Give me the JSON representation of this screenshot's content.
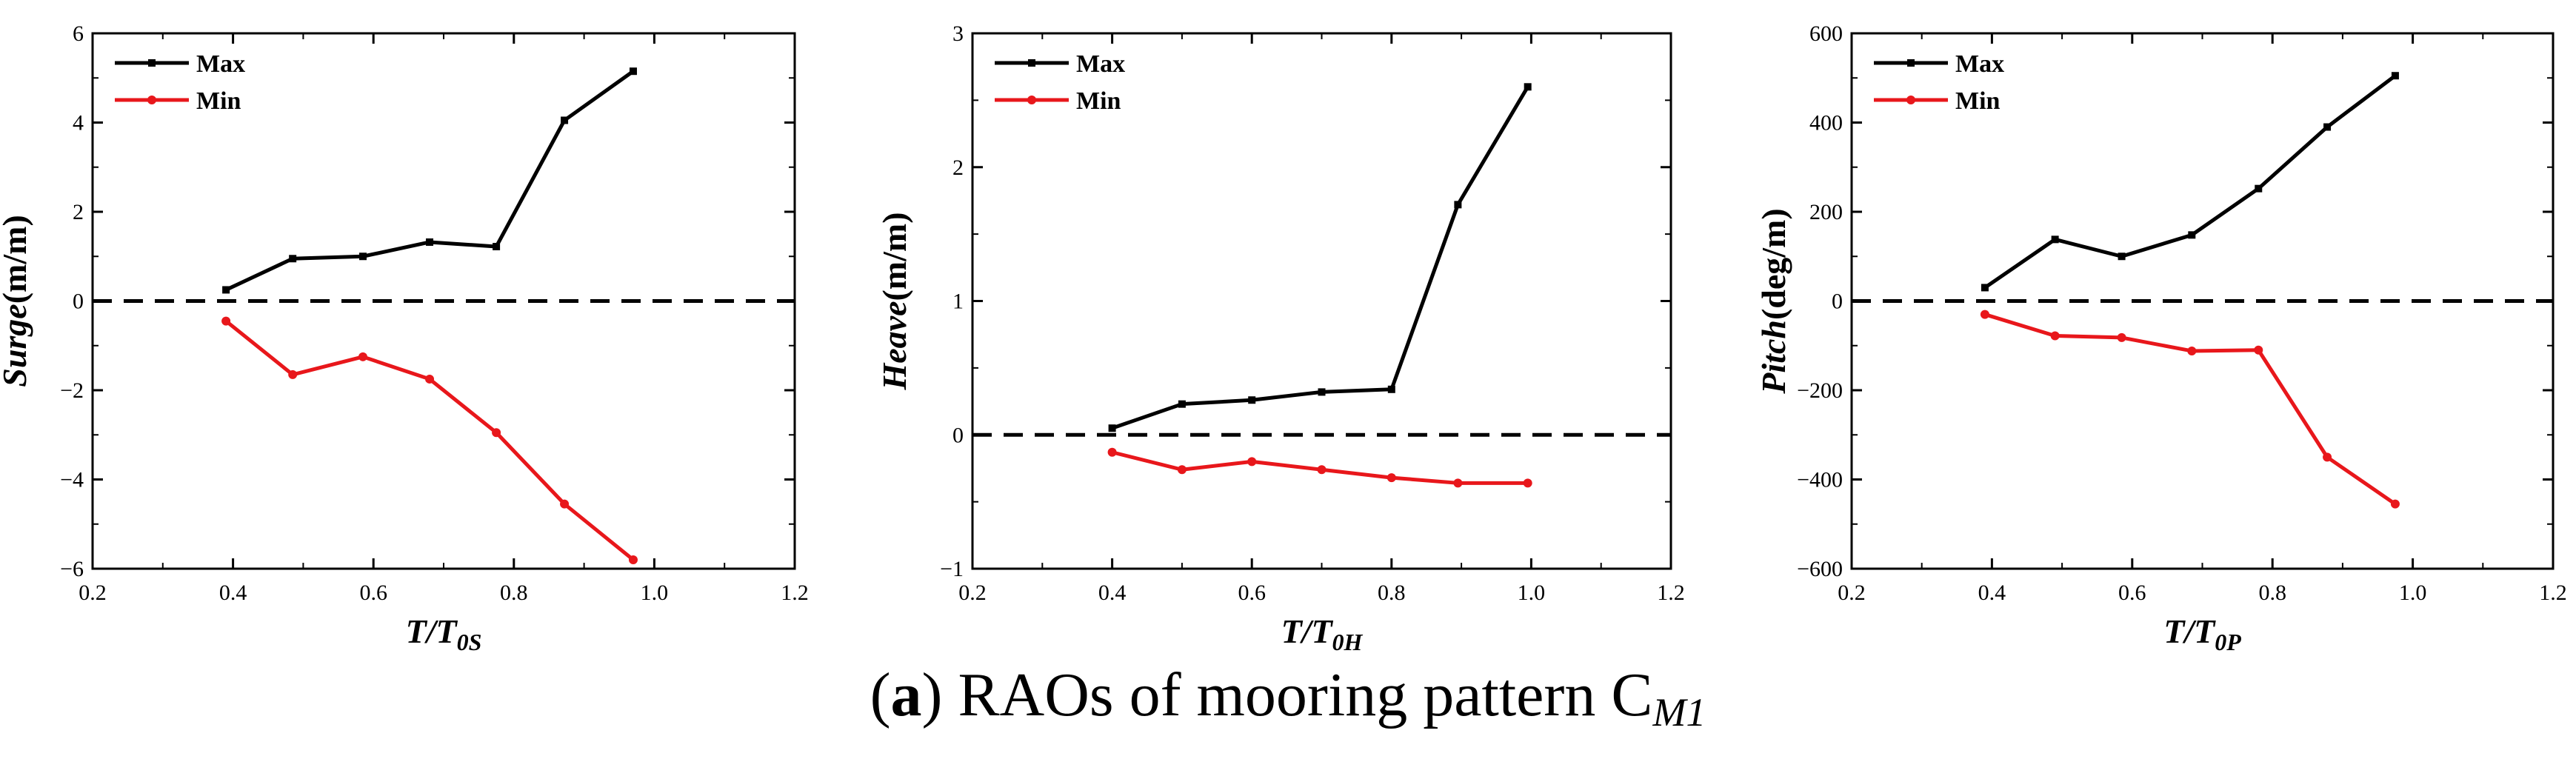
{
  "caption": {
    "letter": "a",
    "text": " RAOs of mooring pattern C",
    "sub": "M1"
  },
  "colors": {
    "max": "#000000",
    "min": "#e8171b",
    "zero_line": "#000000"
  },
  "chart_data": [
    {
      "type": "line",
      "title": "",
      "xlabel": {
        "main": "T/T",
        "sub": "0S"
      },
      "ylabel": {
        "name": "Surge",
        "unit": "(m/m)"
      },
      "xlim": [
        0.2,
        1.2
      ],
      "ylim": [
        -6,
        6
      ],
      "xticks": [
        0.2,
        0.4,
        0.6,
        0.8,
        1.0,
        1.2
      ],
      "xtick_labels": [
        "0.2",
        "0.4",
        "0.6",
        "0.8",
        "1.0",
        "1.2"
      ],
      "yticks": [
        -6,
        -4,
        -2,
        0,
        2,
        4,
        6
      ],
      "ytick_labels": [
        "−6",
        "−4",
        "−2",
        "0",
        "2",
        "4",
        "6"
      ],
      "legend_position": "top-left",
      "zero_line": true,
      "series": [
        {
          "name": "Max",
          "color": "#000000",
          "marker": "square",
          "x": [
            0.39,
            0.485,
            0.585,
            0.68,
            0.775,
            0.872,
            0.97
          ],
          "y": [
            0.25,
            0.95,
            1.0,
            1.32,
            1.22,
            4.05,
            5.15
          ]
        },
        {
          "name": "Min",
          "color": "#e8171b",
          "marker": "circle",
          "x": [
            0.39,
            0.485,
            0.585,
            0.68,
            0.775,
            0.872,
            0.97
          ],
          "y": [
            -0.45,
            -1.65,
            -1.25,
            -1.75,
            -2.95,
            -4.55,
            -5.8
          ]
        }
      ]
    },
    {
      "type": "line",
      "title": "",
      "xlabel": {
        "main": "T/T",
        "sub": "0H"
      },
      "ylabel": {
        "name": "Heave",
        "unit": "(m/m)"
      },
      "xlim": [
        0.2,
        1.2
      ],
      "ylim": [
        -1,
        3
      ],
      "xticks": [
        0.2,
        0.4,
        0.6,
        0.8,
        1.0,
        1.2
      ],
      "xtick_labels": [
        "0.2",
        "0.4",
        "0.6",
        "0.8",
        "1.0",
        "1.2"
      ],
      "yticks": [
        -1,
        0,
        1,
        2,
        3
      ],
      "ytick_labels": [
        "−1",
        "0",
        "1",
        "2",
        "3"
      ],
      "legend_position": "top-left",
      "zero_line": true,
      "series": [
        {
          "name": "Max",
          "color": "#000000",
          "marker": "square",
          "x": [
            0.4,
            0.5,
            0.6,
            0.7,
            0.8,
            0.895,
            0.995
          ],
          "y": [
            0.05,
            0.23,
            0.26,
            0.32,
            0.34,
            1.72,
            2.6
          ]
        },
        {
          "name": "Min",
          "color": "#e8171b",
          "marker": "circle",
          "x": [
            0.4,
            0.5,
            0.6,
            0.7,
            0.8,
            0.895,
            0.995
          ],
          "y": [
            -0.13,
            -0.26,
            -0.2,
            -0.26,
            -0.32,
            -0.36,
            -0.36
          ]
        }
      ]
    },
    {
      "type": "line",
      "title": "",
      "xlabel": {
        "main": "T/T",
        "sub": "0P"
      },
      "ylabel": {
        "name": "Pitch",
        "unit": "(deg/m)"
      },
      "xlim": [
        0.2,
        1.2
      ],
      "ylim": [
        -600,
        600
      ],
      "xticks": [
        0.2,
        0.4,
        0.6,
        0.8,
        1.0,
        1.2
      ],
      "xtick_labels": [
        "0.2",
        "0.4",
        "0.6",
        "0.8",
        "1.0",
        "1.2"
      ],
      "yticks": [
        -600,
        -400,
        -200,
        0,
        200,
        400,
        600
      ],
      "ytick_labels": [
        "−600",
        "−400",
        "−200",
        "0",
        "200",
        "400",
        "600"
      ],
      "legend_position": "top-left",
      "zero_line": true,
      "series": [
        {
          "name": "Max",
          "color": "#000000",
          "marker": "square",
          "x": [
            0.39,
            0.49,
            0.585,
            0.685,
            0.78,
            0.878,
            0.975
          ],
          "y": [
            30,
            138,
            100,
            148,
            252,
            390,
            505
          ]
        },
        {
          "name": "Min",
          "color": "#e8171b",
          "marker": "circle",
          "x": [
            0.39,
            0.49,
            0.585,
            0.685,
            0.78,
            0.878,
            0.975
          ],
          "y": [
            -30,
            -78,
            -82,
            -112,
            -110,
            -350,
            -455
          ]
        }
      ]
    }
  ]
}
